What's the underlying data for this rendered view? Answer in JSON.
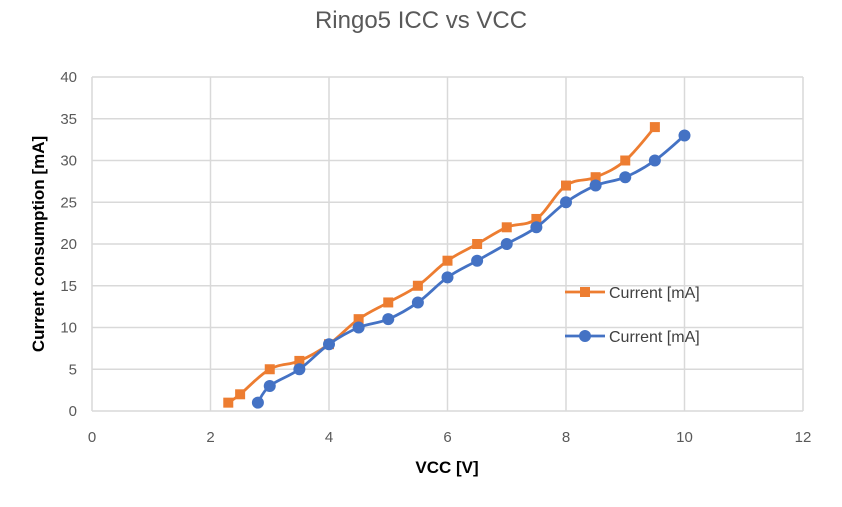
{
  "chart_data": {
    "type": "line",
    "title": "Ringo5 ICC vs VCC",
    "xlabel": "VCC [V]",
    "ylabel": "Current consumption [mA]",
    "xlim": [
      0,
      12
    ],
    "ylim": [
      0,
      40
    ],
    "xticks": [
      0,
      2,
      4,
      6,
      8,
      10,
      12
    ],
    "yticks": [
      0,
      5,
      10,
      15,
      20,
      25,
      30,
      35,
      40
    ],
    "grid": true,
    "legend_position": "right",
    "series": [
      {
        "name": "Current [mA]",
        "color": "#ED7D31",
        "marker": "square",
        "x": [
          2.3,
          2.5,
          3,
          3.5,
          4,
          4.5,
          5,
          5.5,
          6,
          6.5,
          7,
          7.5,
          8,
          8.5,
          9,
          9.5
        ],
        "y": [
          1,
          2,
          5,
          6,
          8,
          11,
          13,
          15,
          18,
          20,
          22,
          23,
          27,
          28,
          30,
          34
        ]
      },
      {
        "name": "Current [mA]",
        "color": "#4472C4",
        "marker": "circle",
        "x": [
          2.8,
          3,
          3.5,
          4,
          4.5,
          5,
          5.5,
          6,
          6.5,
          7,
          7.5,
          8,
          8.5,
          9,
          9.5,
          10
        ],
        "y": [
          1,
          3,
          5,
          8,
          10,
          11,
          13,
          16,
          18,
          20,
          22,
          25,
          27,
          28,
          30,
          33
        ]
      }
    ]
  }
}
